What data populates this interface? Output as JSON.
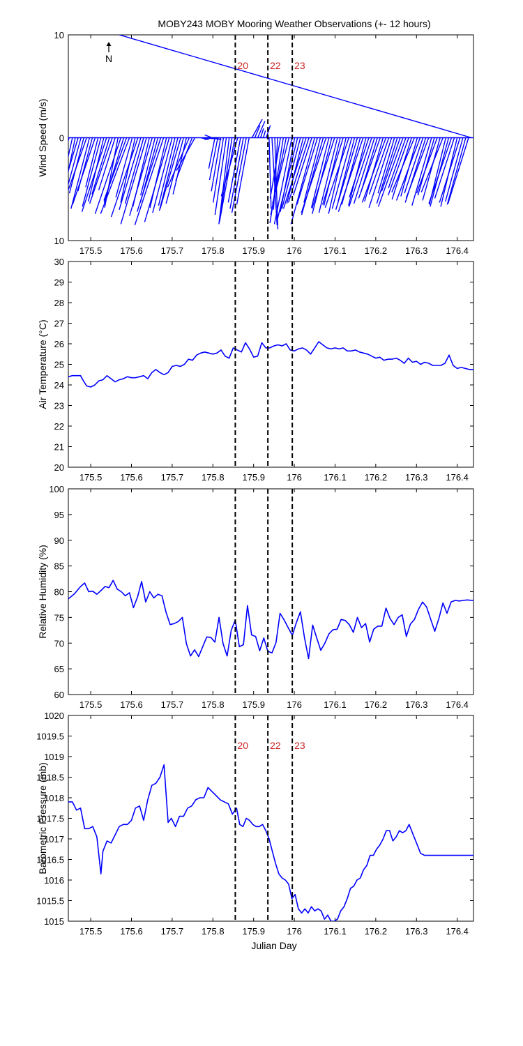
{
  "figure": {
    "title": "MOBY243 MOBY Mooring Weather Observations (+- 12 hours)",
    "north_label": "N",
    "xlabel": "Julian Day",
    "xticks": [
      175.5,
      175.6,
      175.7,
      175.8,
      175.9,
      176,
      176.1,
      176.2,
      176.3,
      176.4
    ],
    "xlim": [
      175.445,
      176.44
    ],
    "vlines": [
      175.855,
      175.935,
      175.995
    ],
    "vline_labels": [
      "20",
      "22",
      "23"
    ],
    "colors": {
      "series": "#0000ff",
      "annotation": "#cc2222",
      "axes": "#000000",
      "vline": "#000000"
    }
  },
  "chart_data": [
    {
      "type": "line",
      "id": "wind",
      "subtype": "vector-stick",
      "ylabel": "Wind Speed (m/s)",
      "ylim": [
        -10,
        10
      ],
      "yticks": [
        10,
        0,
        10
      ],
      "annotations": [
        "20",
        "22",
        "23"
      ],
      "x": [
        175.447,
        175.455,
        175.462,
        175.469,
        175.476,
        175.483,
        175.49,
        175.497,
        175.504,
        175.511,
        175.518,
        175.525,
        175.532,
        175.539,
        175.546,
        175.553,
        175.56,
        175.567,
        175.574,
        175.581,
        175.588,
        175.595,
        175.602,
        175.609,
        175.616,
        175.623,
        175.63,
        175.637,
        175.644,
        175.651,
        175.658,
        175.665,
        175.672,
        175.679,
        175.686,
        175.693,
        175.7,
        175.707,
        175.714,
        175.721,
        175.728,
        175.735,
        175.742,
        175.749,
        175.756,
        175.763,
        175.77,
        175.777,
        175.784,
        175.791,
        175.798,
        175.805,
        175.812,
        175.819,
        175.826,
        175.833,
        175.84,
        175.847,
        175.854,
        175.861,
        175.868,
        175.875,
        175.882,
        175.889,
        175.896,
        175.903,
        175.91,
        175.917,
        175.924,
        175.931,
        175.938,
        175.945,
        175.952,
        175.959,
        175.966,
        175.973,
        175.98,
        175.987,
        175.994,
        176.001,
        176.008,
        176.015,
        176.022,
        176.029,
        176.036,
        176.043,
        176.05,
        176.057,
        176.064,
        176.071,
        176.078,
        176.085,
        176.092,
        176.099,
        176.106,
        176.113,
        176.12,
        176.127,
        176.134,
        176.141,
        176.148,
        176.155,
        176.162,
        176.169,
        176.176,
        176.183,
        176.19,
        176.197,
        176.204,
        176.211,
        176.218,
        176.225,
        176.232,
        176.239,
        176.246,
        176.253,
        176.26,
        176.267,
        176.274,
        176.281,
        176.288,
        176.295,
        176.302,
        176.309,
        176.316,
        176.323,
        176.33,
        176.337,
        176.344,
        176.351,
        176.358,
        176.365,
        176.372,
        176.379,
        176.386,
        176.393,
        176.4,
        176.407,
        176.414,
        176.421,
        176.428,
        176.435
      ],
      "u": [
        -2,
        -1.6,
        -1.2,
        -2.4,
        -1.8,
        -1.4,
        -2.6,
        -1.8,
        -1.4,
        -2.2,
        -1.2,
        -1.8,
        -1.5,
        -2.4,
        -1.7,
        -2.2,
        -1.6,
        -1.3,
        -2.5,
        -1.9,
        -2.2,
        -2.8,
        -1.6,
        -1.4,
        -2.6,
        -2.1,
        -1.8,
        -2.5,
        -1.6,
        -2.2,
        -1.4,
        -1.7,
        -2.3,
        -2.8,
        -1.6,
        -2.4,
        -1.9,
        -1.6,
        -1.8,
        -2,
        -1.7,
        -1.3,
        -2.1,
        -1.6,
        -1.8,
        0,
        0.8,
        1,
        1.2,
        1.1,
        0.9,
        -0.6,
        -0.8,
        -0.9,
        -1,
        -1.1,
        -1,
        -1.2,
        -1.5,
        -1.6,
        -1.2,
        -1.3,
        -1.4,
        -1.2,
        1,
        0.5,
        0.7,
        0.3,
        0.2,
        0.4,
        0.2,
        0.5,
        0.3,
        -0.4,
        -1,
        -1.3,
        -1.5,
        -1.6,
        -1.7,
        -1.4,
        -2,
        -1.8,
        -1.6,
        -2.2,
        -2,
        -1.8,
        -2.3,
        -2,
        -1.6,
        -2.1,
        -2.4,
        -1.7,
        -1.9,
        -2.2,
        -1.8,
        -1.6,
        -2,
        -1.7,
        -2.3,
        -1.9,
        -1.6,
        -2.1,
        -1.8,
        -2.4,
        -1.7,
        -1.9,
        -2.2,
        -2,
        -1.6,
        -2.1,
        -1.8,
        -2.3,
        -1.9,
        -2.2,
        -1.6,
        -2,
        -1.8,
        -2.4,
        -1.7,
        -2,
        -1.9,
        -2.2,
        -1.6,
        -2.3,
        -1.8,
        -2,
        -2.2,
        -1.9,
        -1.6,
        -2,
        -1.7,
        -2.1,
        -1.6,
        -1.8,
        -2.2,
        -1.9,
        -1.6,
        -2,
        -1.7,
        -1.8,
        -2
      ],
      "v": [
        -6.4,
        -7.2,
        -5.8,
        -8.1,
        -6.6,
        -5.4,
        -7.4,
        -6.9,
        -5.2,
        -6.5,
        -4.8,
        -6.7,
        -6.2,
        -7.2,
        -5.5,
        -6.4,
        -5.1,
        -6.8,
        -7.4,
        -6.3,
        -6.1,
        -7.4,
        -5.8,
        -6.3,
        -7.7,
        -7,
        -6.4,
        -8.4,
        -6.7,
        -7.6,
        -5.6,
        -6.3,
        -7.2,
        -8.5,
        -6.8,
        -8.2,
        -7.3,
        -6.6,
        -7.1,
        -6.9,
        -6.4,
        -5.5,
        -4.8,
        -4.2,
        -3.2,
        0,
        -0.2,
        -0.1,
        0,
        -0.15,
        -0.2,
        -3,
        -4.1,
        -5.2,
        -6.3,
        -7.5,
        -8.4,
        -7.9,
        -8.2,
        -5.7,
        -6.3,
        -6.9,
        -7.3,
        -6.5,
        1.8,
        1.2,
        1.6,
        0.9,
        0.7,
        1.2,
        -6.9,
        -8.5,
        -8.9,
        -7,
        -5.9,
        -8.3,
        -7.5,
        -6.4,
        -8.4,
        -7.2,
        -8.1,
        -6.9,
        -6.4,
        -6.9,
        -6.3,
        -5.6,
        -8.4,
        -6.5,
        -6.3,
        -7.5,
        -7.3,
        -6.8,
        -7.4,
        -6.9,
        -7.3,
        -6.6,
        -6.5,
        -7.4,
        -6.8,
        -6.9,
        -6.2,
        -7,
        -6.5,
        -7.2,
        -6.6,
        -5.8,
        -6.7,
        -6.4,
        -5.3,
        -5.9,
        -6.2,
        -6.3,
        -5.5,
        -6.8,
        -5.4,
        -6.4,
        -5.2,
        -6.7,
        -4.9,
        -5.6,
        -6,
        -5.3,
        -5.7,
        -6.1,
        -5.4,
        -6.3,
        -5.9,
        -6.6,
        -5.6,
        -5.4,
        -6.1,
        -5.3,
        -6.5,
        -6.7,
        -6.4,
        -5.9,
        -6.7,
        -6.3,
        -6.2,
        -6.5,
        -6.4
      ]
    },
    {
      "type": "line",
      "id": "airtemp",
      "ylabel": "Air Temperature (°C)",
      "ylim": [
        20,
        30
      ],
      "yticks": [
        20,
        21,
        22,
        23,
        24,
        25,
        26,
        27,
        28,
        29,
        30
      ],
      "x": [
        175.445,
        175.455,
        175.465,
        175.475,
        175.482,
        175.49,
        175.5,
        175.51,
        175.52,
        175.53,
        175.54,
        175.55,
        175.56,
        175.57,
        175.58,
        175.59,
        175.6,
        175.61,
        175.62,
        175.63,
        175.64,
        175.65,
        175.66,
        175.67,
        175.68,
        175.69,
        175.7,
        175.71,
        175.72,
        175.73,
        175.74,
        175.75,
        175.76,
        175.77,
        175.78,
        175.79,
        175.8,
        175.81,
        175.82,
        175.83,
        175.84,
        175.85,
        175.86,
        175.87,
        175.88,
        175.89,
        175.9,
        175.91,
        175.92,
        175.93,
        175.94,
        175.95,
        175.96,
        175.97,
        175.98,
        175.99,
        176,
        176.01,
        176.02,
        176.03,
        176.04,
        176.05,
        176.06,
        176.07,
        176.08,
        176.09,
        176.1,
        176.11,
        176.12,
        176.13,
        176.14,
        176.15,
        176.16,
        176.17,
        176.18,
        176.19,
        176.2,
        176.21,
        176.22,
        176.23,
        176.24,
        176.25,
        176.26,
        176.27,
        176.28,
        176.29,
        176.3,
        176.31,
        176.32,
        176.33,
        176.34,
        176.35,
        176.36,
        176.37,
        176.38,
        176.39,
        176.4,
        176.41,
        176.42,
        176.43,
        176.44
      ],
      "y": [
        24.4,
        24.45,
        24.45,
        24.45,
        24.2,
        23.95,
        23.9,
        24,
        24.2,
        24.25,
        24.45,
        24.3,
        24.15,
        24.25,
        24.3,
        24.4,
        24.35,
        24.35,
        24.4,
        24.45,
        24.3,
        24.6,
        24.75,
        24.6,
        24.5,
        24.6,
        24.9,
        24.95,
        24.9,
        25,
        25.25,
        25.2,
        25.45,
        25.55,
        25.6,
        25.55,
        25.5,
        25.55,
        25.7,
        25.4,
        25.3,
        25.8,
        25.7,
        25.6,
        26.05,
        25.75,
        25.35,
        25.4,
        26.05,
        25.8,
        25.8,
        25.9,
        25.95,
        25.9,
        26,
        25.7,
        25.65,
        25.75,
        25.8,
        25.7,
        25.5,
        25.8,
        26.1,
        25.95,
        25.8,
        25.75,
        25.8,
        25.75,
        25.8,
        25.65,
        25.65,
        25.7,
        25.6,
        25.55,
        25.5,
        25.4,
        25.3,
        25.35,
        25.2,
        25.25,
        25.25,
        25.3,
        25.2,
        25.05,
        25.3,
        25.1,
        25.15,
        25,
        25.1,
        25.05,
        24.95,
        24.95,
        24.95,
        25.05,
        25.45,
        24.95,
        24.8,
        24.85,
        24.8,
        24.75,
        24.75
      ]
    },
    {
      "type": "line",
      "id": "humidity",
      "ylabel": "Relative Humidity (%)",
      "ylim": [
        60,
        100
      ],
      "yticks": [
        60,
        65,
        70,
        75,
        80,
        85,
        90,
        95,
        100
      ],
      "x": [
        175.445,
        175.46,
        175.475,
        175.485,
        175.495,
        175.505,
        175.515,
        175.525,
        175.535,
        175.545,
        175.555,
        175.565,
        175.575,
        175.585,
        175.595,
        175.605,
        175.615,
        175.625,
        175.635,
        175.645,
        175.655,
        175.665,
        175.675,
        175.685,
        175.695,
        175.705,
        175.715,
        175.725,
        175.735,
        175.745,
        175.755,
        175.765,
        175.775,
        175.785,
        175.795,
        175.805,
        175.815,
        175.825,
        175.835,
        175.845,
        175.855,
        175.865,
        175.875,
        175.885,
        175.895,
        175.905,
        175.915,
        175.925,
        175.935,
        175.945,
        175.955,
        175.965,
        175.975,
        175.985,
        175.995,
        176.005,
        176.015,
        176.025,
        176.035,
        176.045,
        176.055,
        176.065,
        176.075,
        176.085,
        176.095,
        176.105,
        176.115,
        176.125,
        176.135,
        176.145,
        176.155,
        176.165,
        176.175,
        176.185,
        176.195,
        176.205,
        176.215,
        176.225,
        176.235,
        176.245,
        176.255,
        176.265,
        176.275,
        176.285,
        176.295,
        176.305,
        176.315,
        176.325,
        176.335,
        176.345,
        176.355,
        176.365,
        176.375,
        176.385,
        176.395,
        176.405,
        176.415,
        176.425,
        176.435,
        176.44
      ],
      "y": [
        78.6,
        79.6,
        81,
        81.7,
        80,
        80.1,
        79.5,
        80.2,
        81,
        80.8,
        82.2,
        80.5,
        80,
        79.2,
        79.8,
        76.9,
        79,
        82,
        78,
        80,
        78.8,
        79.5,
        79.2,
        76,
        73.6,
        73.8,
        74.2,
        75,
        69.9,
        67.5,
        68.7,
        67.4,
        69.3,
        71.2,
        71.1,
        70.2,
        75,
        69.9,
        67.5,
        72.5,
        74.5,
        69.3,
        69.7,
        77.3,
        71.6,
        71.3,
        68.5,
        71,
        68.4,
        68.1,
        70.1,
        75.8,
        74.5,
        73,
        71.5,
        74,
        76.1,
        71,
        67,
        73.5,
        71,
        68.6,
        70,
        71.8,
        72.6,
        72.7,
        74.6,
        74.4,
        73.6,
        72.1,
        75,
        73,
        73.8,
        70.2,
        72.7,
        73.3,
        73.3,
        76.8,
        74.8,
        73.6,
        75,
        75.5,
        71.3,
        73.7,
        74.6,
        76.6,
        78,
        77,
        74.6,
        72.3,
        74.8,
        77.8,
        75.8,
        78,
        78.3,
        78.2,
        78.3,
        78.4,
        78.3,
        78.3
      ]
    },
    {
      "type": "line",
      "id": "pressure",
      "ylabel": "Barometric Pressure (mb)",
      "ylim": [
        1015,
        1020
      ],
      "yticks": [
        1015,
        1015.5,
        1016,
        1016.5,
        1017,
        1017.5,
        1018,
        1018.5,
        1019,
        1019.5,
        1020
      ],
      "annotations": [
        "20",
        "22",
        "23"
      ],
      "x": [
        175.445,
        175.455,
        175.465,
        175.475,
        175.485,
        175.495,
        175.505,
        175.515,
        175.525,
        175.53,
        175.54,
        175.55,
        175.56,
        175.57,
        175.58,
        175.59,
        175.6,
        175.61,
        175.62,
        175.63,
        175.64,
        175.65,
        175.66,
        175.67,
        175.68,
        175.69,
        175.698,
        175.708,
        175.718,
        175.728,
        175.738,
        175.748,
        175.758,
        175.768,
        175.778,
        175.788,
        175.798,
        175.808,
        175.818,
        175.828,
        175.838,
        175.848,
        175.858,
        175.866,
        175.874,
        175.882,
        175.89,
        175.898,
        175.906,
        175.914,
        175.922,
        175.93,
        175.938,
        175.946,
        175.954,
        175.962,
        175.97,
        175.978,
        175.986,
        175.994,
        176.002,
        176.01,
        176.018,
        176.026,
        176.034,
        176.042,
        176.05,
        176.058,
        176.066,
        176.074,
        176.082,
        176.09,
        176.098,
        176.106,
        176.114,
        176.122,
        176.13,
        176.138,
        176.146,
        176.154,
        176.162,
        176.17,
        176.178,
        176.186,
        176.194,
        176.202,
        176.21,
        176.218,
        176.226,
        176.234,
        176.242,
        176.25,
        176.258,
        176.266,
        176.274,
        176.282,
        176.29,
        176.3,
        176.31,
        176.32,
        176.33,
        176.34,
        176.35,
        176.36,
        176.37,
        176.38,
        176.39,
        176.4,
        176.41,
        176.42,
        176.43,
        176.44
      ],
      "y": [
        1017.9,
        1017.9,
        1017.7,
        1017.75,
        1017.25,
        1017.25,
        1017.3,
        1017.05,
        1016.15,
        1016.7,
        1016.95,
        1016.9,
        1017.1,
        1017.3,
        1017.35,
        1017.35,
        1017.45,
        1017.75,
        1017.8,
        1017.45,
        1017.95,
        1018.3,
        1018.35,
        1018.5,
        1018.8,
        1017.4,
        1017.5,
        1017.3,
        1017.55,
        1017.55,
        1017.75,
        1017.8,
        1017.95,
        1018,
        1018,
        1018.25,
        1018.15,
        1018.05,
        1017.95,
        1017.9,
        1017.85,
        1017.6,
        1017.75,
        1017.35,
        1017.3,
        1017.5,
        1017.45,
        1017.35,
        1017.3,
        1017.3,
        1017.35,
        1017.2,
        1017,
        1016.7,
        1016.4,
        1016.15,
        1016.05,
        1016,
        1015.9,
        1015.55,
        1015.65,
        1015.3,
        1015.2,
        1015.3,
        1015.2,
        1015.35,
        1015.25,
        1015.3,
        1015.25,
        1015.05,
        1015.15,
        1015,
        1015,
        1015.05,
        1015.25,
        1015.35,
        1015.55,
        1015.8,
        1015.85,
        1016,
        1016.05,
        1016.25,
        1016.35,
        1016.6,
        1016.6,
        1016.75,
        1016.85,
        1017,
        1017.2,
        1017.2,
        1016.95,
        1017.05,
        1017.2,
        1017.15,
        1017.2,
        1017.35,
        1017.15,
        1016.9,
        1016.65,
        1016.6,
        1016.6,
        1016.6,
        1016.6,
        1016.6,
        1016.6,
        1016.6,
        1016.6,
        1016.6,
        1016.6,
        1016.6,
        1016.6,
        1016.6
      ]
    }
  ]
}
